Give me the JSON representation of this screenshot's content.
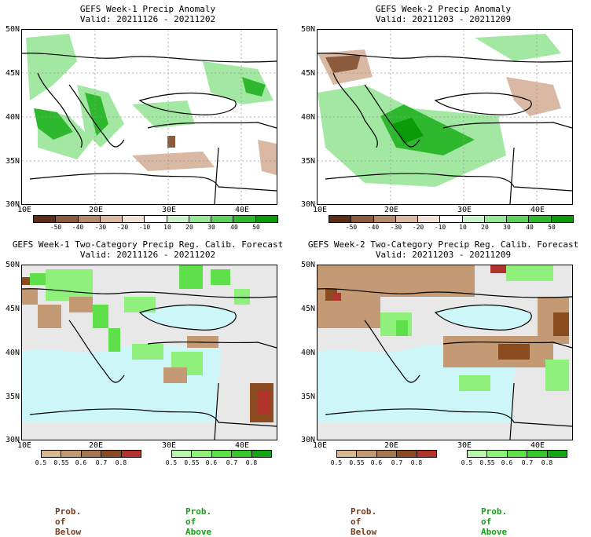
{
  "panels": [
    {
      "title_line1": "GEFS Week-1 Precip Anomaly",
      "title_line2": "Valid: 20211126 - 20211202"
    },
    {
      "title_line1": "GEFS Week-2 Precip Anomaly",
      "title_line2": "Valid: 20211203 - 20211209"
    },
    {
      "title_line1": "GEFS Week-1 Two-Category Precip Reg. Calib. Forecast",
      "title_line2": "Valid: 20211126 - 20211202"
    },
    {
      "title_line1": "GEFS Week-2 Two-Category Precip Reg. Calib. Forecast",
      "title_line2": "Valid: 20211203 - 20211209"
    }
  ],
  "lat_labels": [
    "50N",
    "45N",
    "40N",
    "35N",
    "30N"
  ],
  "lon_labels": [
    "10E",
    "20E",
    "30E",
    "40E"
  ],
  "anomaly_colorbar": {
    "ticks": [
      "-50",
      "-40",
      "-30",
      "-20",
      "-10",
      "10",
      "20",
      "30",
      "40",
      "50"
    ],
    "colors": [
      "#5c2e17",
      "#8c5a3c",
      "#b48a6e",
      "#d9b9a4",
      "#f0e0d6",
      "#ffffff",
      "#cdf3cd",
      "#98e698",
      "#5cd15c",
      "#2eb82e",
      "#0a9a0a"
    ]
  },
  "prob_below": {
    "ticks": [
      "0.5",
      "0.55",
      "0.6",
      "0.7",
      "0.8"
    ],
    "colors": [
      "#d7b98c",
      "#c39a73",
      "#a6774f",
      "#8a4b1f",
      "#b1342c"
    ],
    "label": "Prob. of Below"
  },
  "prob_above": {
    "ticks": [
      "0.5",
      "0.55",
      "0.6",
      "0.7",
      "0.8"
    ],
    "colors": [
      "#b6f7a8",
      "#8ff07c",
      "#5fe04a",
      "#35c72b",
      "#14a614"
    ],
    "label": "Prob. of Above"
  }
}
